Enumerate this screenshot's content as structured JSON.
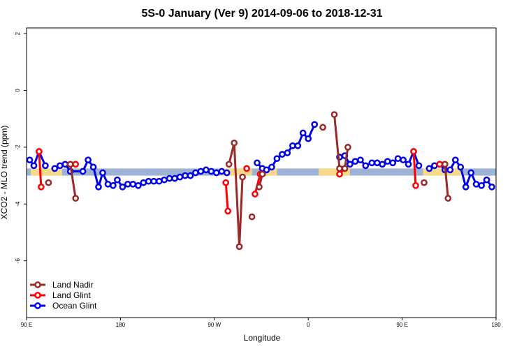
{
  "chart_data": {
    "type": "line",
    "title": "5S-0 January (Ver 9)   2014-09-06 to 2018-12-31",
    "xlabel": "Longitude",
    "ylabel": "XCO2 - MLO trend (ppm)",
    "xlim": [
      90,
      540
    ],
    "ylim": [
      -8,
      2.2
    ],
    "x_ticks": [
      {
        "value": 90,
        "label": "90 E"
      },
      {
        "value": 180,
        "label": "180"
      },
      {
        "value": 270,
        "label": "90 W"
      },
      {
        "value": 360,
        "label": "0"
      },
      {
        "value": 450,
        "label": "90 E"
      },
      {
        "value": 540,
        "label": "180"
      }
    ],
    "y_ticks": [
      {
        "value": 2,
        "label": "2"
      },
      {
        "value": 0,
        "label": "0"
      },
      {
        "value": -2,
        "label": "-2"
      },
      {
        "value": -4,
        "label": "-4"
      },
      {
        "value": -6,
        "label": "-6"
      }
    ],
    "background_band": {
      "y_range": [
        -3.0,
        -2.75
      ],
      "color": "#9db3d6",
      "land_segments": [
        [
          94,
          124
        ],
        [
          276,
          306
        ],
        [
          320,
          330
        ],
        [
          370,
          400
        ],
        [
          470,
          508
        ]
      ],
      "land_color": "#f7d98b"
    },
    "legend": {
      "placement": "bottom-left",
      "entries": [
        {
          "name": "Land Nadir",
          "color": "#9a2a2a"
        },
        {
          "name": "Land Glint",
          "color": "#ff0000"
        },
        {
          "name": "Ocean Glint",
          "color": "#0000e6"
        }
      ]
    },
    "series": [
      {
        "name": "Ocean Glint",
        "color": "#0000e6",
        "segments": [
          [
            [
              93,
              -2.45
            ],
            [
              97,
              -2.65
            ],
            [
              102,
              -2.15
            ],
            [
              108,
              -2.65
            ]
          ],
          [
            [
              117,
              -2.75
            ],
            [
              122,
              -2.65
            ],
            [
              127,
              -2.6
            ],
            [
              132,
              -2.85
            ],
            [
              144,
              -2.85
            ],
            [
              149,
              -2.45
            ],
            [
              154,
              -2.7
            ],
            [
              159,
              -3.4
            ],
            [
              163,
              -2.9
            ],
            [
              168,
              -3.3
            ],
            [
              173,
              -3.35
            ],
            [
              177,
              -3.15
            ],
            [
              182,
              -3.4
            ],
            [
              187,
              -3.3
            ],
            [
              192,
              -3.3
            ],
            [
              197,
              -3.35
            ],
            [
              202,
              -3.25
            ],
            [
              207,
              -3.2
            ],
            [
              212,
              -3.2
            ],
            [
              217,
              -3.2
            ],
            [
              222,
              -3.15
            ],
            [
              227,
              -3.1
            ],
            [
              232,
              -3.1
            ],
            [
              237,
              -3.05
            ],
            [
              242,
              -3.0
            ],
            [
              247,
              -3.0
            ],
            [
              252,
              -2.9
            ],
            [
              257,
              -2.85
            ],
            [
              262,
              -2.8
            ],
            [
              267,
              -2.85
            ],
            [
              272,
              -2.9
            ],
            [
              277,
              -2.85
            ],
            [
              282,
              -2.9
            ]
          ],
          [
            [
              311,
              -2.55
            ],
            [
              316,
              -2.75
            ],
            [
              320,
              -2.8
            ],
            [
              325,
              -2.7
            ],
            [
              330,
              -2.4
            ],
            [
              335,
              -2.25
            ],
            [
              340,
              -2.2
            ],
            [
              345,
              -1.95
            ],
            [
              350,
              -1.95
            ],
            [
              355,
              -1.5
            ],
            [
              360,
              -1.7
            ],
            [
              366,
              -1.2
            ]
          ],
          [
            [
              390,
              -2.35
            ],
            [
              395,
              -2.3
            ],
            [
              400,
              -2.6
            ],
            [
              405,
              -2.5
            ],
            [
              410,
              -2.45
            ],
            [
              415,
              -2.65
            ],
            [
              421,
              -2.55
            ],
            [
              426,
              -2.55
            ],
            [
              431,
              -2.6
            ],
            [
              436,
              -2.5
            ],
            [
              441,
              -2.55
            ],
            [
              446,
              -2.4
            ],
            [
              451,
              -2.45
            ],
            [
              456,
              -2.6
            ],
            [
              461,
              -2.15
            ],
            [
              466,
              -2.65
            ]
          ],
          [
            [
              476,
              -2.75
            ],
            [
              481,
              -2.65
            ],
            [
              486,
              -2.6
            ],
            [
              491,
              -2.8
            ],
            [
              496,
              -2.8
            ],
            [
              501,
              -2.45
            ],
            [
              506,
              -2.7
            ],
            [
              511,
              -3.4
            ],
            [
              516,
              -2.9
            ],
            [
              521,
              -3.3
            ],
            [
              526,
              -3.35
            ],
            [
              531,
              -3.15
            ],
            [
              536,
              -3.4
            ]
          ]
        ]
      },
      {
        "name": "Land Glint",
        "color": "#ff0000",
        "segments": [
          [
            [
              102,
              -2.15
            ],
            [
              104,
              -3.4
            ]
          ],
          [
            [
              132,
              -2.6
            ],
            [
              137,
              -2.6
            ]
          ],
          [
            [
              281,
              -3.25
            ],
            [
              283,
              -4.25
            ]
          ],
          [
            [
              301,
              -2.75
            ]
          ],
          [
            [
              309,
              -3.65
            ],
            [
              314,
              -2.95
            ]
          ],
          [
            [
              390,
              -2.95
            ],
            [
              395,
              -2.75
            ]
          ],
          [
            [
              461,
              -2.15
            ],
            [
              463,
              -3.35
            ]
          ],
          [
            [
              486,
              -2.6
            ],
            [
              491,
              -2.6
            ]
          ]
        ]
      },
      {
        "name": "Land Nadir",
        "color": "#9a2a2a",
        "segments": [
          [
            [
              111,
              -3.25
            ]
          ],
          [
            [
              132,
              -2.6
            ],
            [
              137,
              -3.8
            ]
          ],
          [
            [
              284,
              -2.6
            ],
            [
              289,
              -1.85
            ],
            [
              294,
              -5.5
            ],
            [
              297,
              -3.05
            ]
          ],
          [
            [
              306,
              -4.45
            ]
          ],
          [
            [
              313,
              -3.4
            ],
            [
              316,
              -2.95
            ]
          ],
          [
            [
              374,
              -1.3
            ]
          ],
          [
            [
              385,
              -0.85
            ],
            [
              390,
              -2.75
            ],
            [
              395,
              -2.75
            ],
            [
              398,
              -2.0
            ]
          ],
          [
            [
              471,
              -3.25
            ]
          ],
          [
            [
              491,
              -2.6
            ],
            [
              494,
              -3.8
            ]
          ]
        ]
      }
    ]
  }
}
